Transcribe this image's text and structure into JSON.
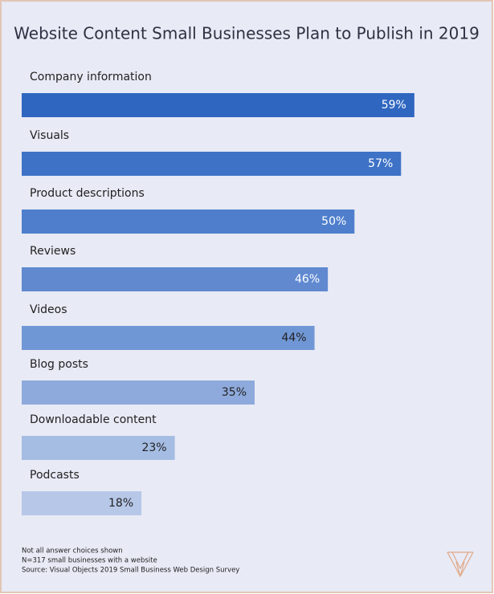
{
  "chart_data": {
    "type": "bar",
    "orientation": "horizontal",
    "title": "Website Content Small Businesses Plan to Publish in 2019",
    "categories": [
      "Company information",
      "Visuals",
      "Product descriptions",
      "Reviews",
      "Videos",
      "Blog posts",
      "Downloadable content",
      "Podcasts"
    ],
    "values": [
      59,
      57,
      50,
      46,
      44,
      35,
      23,
      18
    ],
    "value_labels": [
      "59%",
      "57%",
      "50%",
      "46%",
      "44%",
      "35%",
      "23%",
      "18%"
    ],
    "colors": [
      "#2f67c0",
      "#3e72c6",
      "#4f7fcc",
      "#6089d0",
      "#7097d5",
      "#8eaadc",
      "#a5bce3",
      "#b7c7e8"
    ],
    "xlim": [
      0,
      70
    ],
    "notes": [
      "Not all answer choices shown",
      "N=317 small businesses with a website",
      "Source: Visual Objects 2019 Small Business Web Design Survey"
    ]
  }
}
